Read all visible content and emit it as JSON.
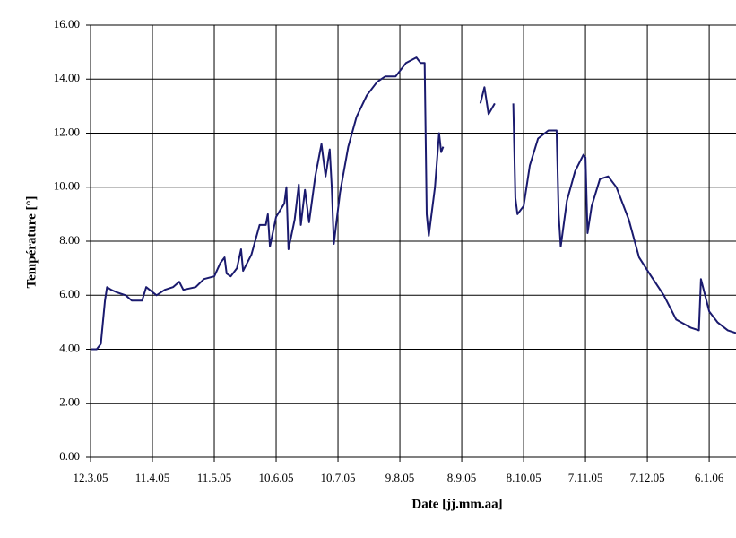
{
  "chart_data": {
    "type": "line",
    "x_label": "Date [jj.mm.aa]",
    "y_label": "Température [°]",
    "color": "#1a1a6e",
    "grid": true,
    "xlim": [
      "2005-03-12",
      "2006-01-19"
    ],
    "xticks": [
      {
        "value": "2005-03-12",
        "label": "12.3.05"
      },
      {
        "value": "2005-04-11",
        "label": "11.4.05"
      },
      {
        "value": "2005-05-11",
        "label": "11.5.05"
      },
      {
        "value": "2005-06-10",
        "label": "10.6.05"
      },
      {
        "value": "2005-07-10",
        "label": "10.7.05"
      },
      {
        "value": "2005-08-09",
        "label": "9.8.05"
      },
      {
        "value": "2005-09-08",
        "label": "8.9.05"
      },
      {
        "value": "2005-10-08",
        "label": "8.10.05"
      },
      {
        "value": "2005-11-07",
        "label": "7.11.05"
      },
      {
        "value": "2005-12-07",
        "label": "7.12.05"
      },
      {
        "value": "2006-01-06",
        "label": "6.1.06"
      }
    ],
    "ylim": [
      0,
      16
    ],
    "yticks": [
      {
        "value": 0,
        "label": "0.00"
      },
      {
        "value": 2,
        "label": "2.00"
      },
      {
        "value": 4,
        "label": "4.00"
      },
      {
        "value": 6,
        "label": "6.00"
      },
      {
        "value": 8,
        "label": "8.00"
      },
      {
        "value": 10,
        "label": "10.00"
      },
      {
        "value": 12,
        "label": "12.00"
      },
      {
        "value": 14,
        "label": "14.00"
      },
      {
        "value": 16,
        "label": "16.00"
      }
    ],
    "x": [
      "2005-03-12",
      "2005-03-15",
      "2005-03-17",
      "2005-03-19",
      "2005-03-20",
      "2005-03-22",
      "2005-03-25",
      "2005-03-29",
      "2005-04-01",
      "2005-04-06",
      "2005-04-08",
      "2005-04-13",
      "2005-04-17",
      "2005-04-21",
      "2005-04-24",
      "2005-04-26",
      "2005-05-02",
      "2005-05-06",
      "2005-05-11",
      "2005-05-14",
      "2005-05-16",
      "2005-05-17",
      "2005-05-19",
      "2005-05-22",
      "2005-05-24",
      "2005-05-25",
      "2005-05-29",
      "2005-06-02",
      "2005-06-05",
      "2005-06-06",
      "2005-06-07",
      "2005-06-10",
      "2005-06-14",
      "2005-06-15",
      "2005-06-16",
      "2005-06-19",
      "2005-06-21",
      "2005-06-22",
      "2005-06-24",
      "2005-06-26",
      "2005-06-29",
      "2005-07-02",
      "2005-07-04",
      "2005-07-06",
      "2005-07-07",
      "2005-07-08",
      "2005-07-11",
      "2005-07-15",
      "2005-07-19",
      "2005-07-24",
      "2005-07-29",
      "2005-08-02",
      "2005-08-07",
      "2005-08-12",
      "2005-08-17",
      "2005-08-19",
      "2005-08-21",
      "2005-08-22",
      "2005-08-23",
      "2005-08-26",
      "2005-08-28",
      "2005-08-29",
      "2005-08-30",
      "2005-09-08",
      "2005-09-17",
      "2005-09-19",
      "2005-09-21",
      "2005-09-24",
      "2005-09-28",
      "2005-10-03",
      "2005-10-04",
      "2005-10-05",
      "2005-10-08",
      "2005-10-11",
      "2005-10-15",
      "2005-10-20",
      "2005-10-24",
      "2005-10-25",
      "2005-10-26",
      "2005-10-29",
      "2005-11-02",
      "2005-11-06",
      "2005-11-07",
      "2005-11-08",
      "2005-11-10",
      "2005-11-14",
      "2005-11-18",
      "2005-11-22",
      "2005-11-28",
      "2005-12-03",
      "2005-12-08",
      "2005-12-15",
      "2005-12-21",
      "2005-12-28",
      "2006-01-01",
      "2006-01-02",
      "2006-01-06",
      "2006-01-10",
      "2006-01-15",
      "2006-01-19"
    ],
    "values": [
      4.0,
      4.0,
      4.2,
      5.8,
      6.3,
      6.2,
      6.1,
      6.0,
      5.8,
      5.8,
      6.3,
      6.0,
      6.2,
      6.3,
      6.5,
      6.2,
      6.3,
      6.6,
      6.7,
      7.2,
      7.4,
      6.8,
      6.7,
      7.0,
      7.7,
      6.9,
      7.5,
      8.6,
      8.6,
      9.0,
      7.8,
      8.9,
      9.4,
      10.0,
      7.7,
      8.8,
      10.1,
      8.6,
      9.9,
      8.7,
      10.4,
      11.6,
      10.4,
      11.4,
      10.0,
      7.9,
      9.8,
      11.5,
      12.6,
      13.4,
      13.9,
      14.1,
      14.1,
      14.6,
      14.8,
      14.6,
      14.6,
      9.0,
      8.2,
      10.0,
      12.0,
      11.3,
      11.5,
      null,
      13.1,
      13.7,
      12.7,
      13.1,
      null,
      13.1,
      9.6,
      9.0,
      9.3,
      10.8,
      11.8,
      12.1,
      12.1,
      9.0,
      7.8,
      9.5,
      10.6,
      11.2,
      11.1,
      8.3,
      9.3,
      10.3,
      10.4,
      10.0,
      8.8,
      7.4,
      6.8,
      6.0,
      5.1,
      4.8,
      4.7,
      6.6,
      5.4,
      5.0,
      4.7,
      4.6
    ]
  }
}
